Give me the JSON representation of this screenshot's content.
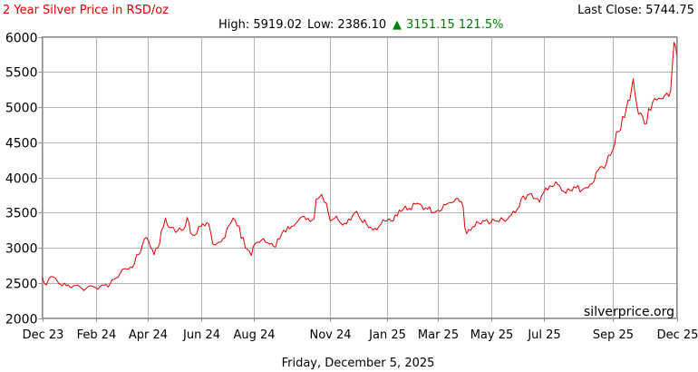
{
  "header": {
    "title": "2 Year Silver Price in RSD/oz",
    "last_close": "Last Close: 5744.75",
    "high": "High: 5919.02",
    "low": "Low: 2386.10",
    "change_arrow": "▲",
    "change": "3151.15 121.5%"
  },
  "watermark": "silverprice.org",
  "footer_date": "Friday, December 5, 2025",
  "colors": {
    "series": "#e00000",
    "change_up": "#008000",
    "title": "#e00000"
  },
  "chart_data": {
    "type": "line",
    "title": "2 Year Silver Price in RSD/oz",
    "xlabel": "",
    "ylabel": "",
    "ylim": [
      2000,
      6000
    ],
    "yticks": [
      2000,
      2500,
      3000,
      3500,
      4000,
      4500,
      5000,
      5500,
      6000
    ],
    "xlim": [
      "2023-12-05",
      "2025-12-05"
    ],
    "xtick_labels": [
      "Dec 23",
      "Feb 24",
      "Apr 24",
      "Jun 24",
      "Aug 24",
      "Nov 24",
      "Jan 25",
      "Mar 25",
      "May 25",
      "Jul 25",
      "Sep 25",
      "Dec 25"
    ],
    "xtick_dates": [
      "2023-12-05",
      "2024-02-05",
      "2024-04-05",
      "2024-06-05",
      "2024-08-05",
      "2024-11-01",
      "2025-01-05",
      "2025-03-05",
      "2025-05-05",
      "2025-07-05",
      "2025-09-22",
      "2025-12-05"
    ],
    "grid": true,
    "legend": "none",
    "series": [
      {
        "color": "#e00000",
        "x": [
          "2023-12-05",
          "2023-12-10",
          "2023-12-15",
          "2023-12-20",
          "2023-12-26",
          "2024-01-02",
          "2024-01-08",
          "2024-01-15",
          "2024-01-22",
          "2024-01-29",
          "2024-02-05",
          "2024-02-12",
          "2024-02-19",
          "2024-02-26",
          "2024-03-04",
          "2024-03-11",
          "2024-03-18",
          "2024-03-25",
          "2024-04-01",
          "2024-04-08",
          "2024-04-12",
          "2024-04-18",
          "2024-04-25",
          "2024-05-02",
          "2024-05-09",
          "2024-05-16",
          "2024-05-20",
          "2024-05-24",
          "2024-05-31",
          "2024-06-07",
          "2024-06-14",
          "2024-06-21",
          "2024-06-28",
          "2024-07-05",
          "2024-07-12",
          "2024-07-19",
          "2024-07-26",
          "2024-08-02",
          "2024-08-09",
          "2024-08-16",
          "2024-08-23",
          "2024-08-30",
          "2024-09-06",
          "2024-09-13",
          "2024-09-20",
          "2024-09-27",
          "2024-10-04",
          "2024-10-11",
          "2024-10-18",
          "2024-10-22",
          "2024-10-25",
          "2024-11-01",
          "2024-11-08",
          "2024-11-15",
          "2024-11-22",
          "2024-11-29",
          "2024-12-06",
          "2024-12-13",
          "2024-12-20",
          "2024-12-27",
          "2025-01-03",
          "2025-01-10",
          "2025-01-17",
          "2025-01-24",
          "2025-01-31",
          "2025-02-07",
          "2025-02-14",
          "2025-02-21",
          "2025-02-28",
          "2025-03-07",
          "2025-03-14",
          "2025-03-21",
          "2025-03-28",
          "2025-04-03",
          "2025-04-07",
          "2025-04-14",
          "2025-04-21",
          "2025-04-28",
          "2025-05-05",
          "2025-05-12",
          "2025-05-19",
          "2025-05-26",
          "2025-06-02",
          "2025-06-09",
          "2025-06-16",
          "2025-06-23",
          "2025-06-30",
          "2025-07-07",
          "2025-07-14",
          "2025-07-21",
          "2025-07-28",
          "2025-08-04",
          "2025-08-11",
          "2025-08-18",
          "2025-08-25",
          "2025-09-01",
          "2025-09-08",
          "2025-09-15",
          "2025-09-22",
          "2025-09-29",
          "2025-10-06",
          "2025-10-10",
          "2025-10-16",
          "2025-10-22",
          "2025-10-29",
          "2025-11-05",
          "2025-11-12",
          "2025-11-19",
          "2025-11-26",
          "2025-12-02",
          "2025-12-04",
          "2025-12-05"
        ],
        "values": [
          2580,
          2470,
          2590,
          2570,
          2480,
          2460,
          2430,
          2470,
          2390,
          2460,
          2430,
          2470,
          2440,
          2550,
          2640,
          2700,
          2720,
          2900,
          3130,
          3000,
          2900,
          3040,
          3420,
          3290,
          3240,
          3260,
          3430,
          3210,
          3200,
          3340,
          3330,
          3040,
          3080,
          3280,
          3420,
          3310,
          3000,
          2890,
          3080,
          3130,
          3050,
          3010,
          3200,
          3300,
          3310,
          3420,
          3400,
          3390,
          3700,
          3760,
          3650,
          3380,
          3450,
          3320,
          3410,
          3500,
          3400,
          3330,
          3250,
          3300,
          3380,
          3380,
          3450,
          3550,
          3560,
          3620,
          3600,
          3550,
          3500,
          3520,
          3610,
          3640,
          3700,
          3580,
          3200,
          3300,
          3350,
          3380,
          3360,
          3380,
          3400,
          3440,
          3500,
          3700,
          3750,
          3700,
          3650,
          3850,
          3870,
          3900,
          3800,
          3820,
          3850,
          3820,
          3850,
          3950,
          4150,
          4200,
          4380,
          4650,
          4850,
          5100,
          5400,
          4900,
          4760,
          4950,
          5100,
          5120,
          5150,
          5920,
          5850,
          5744.75
        ]
      }
    ]
  }
}
